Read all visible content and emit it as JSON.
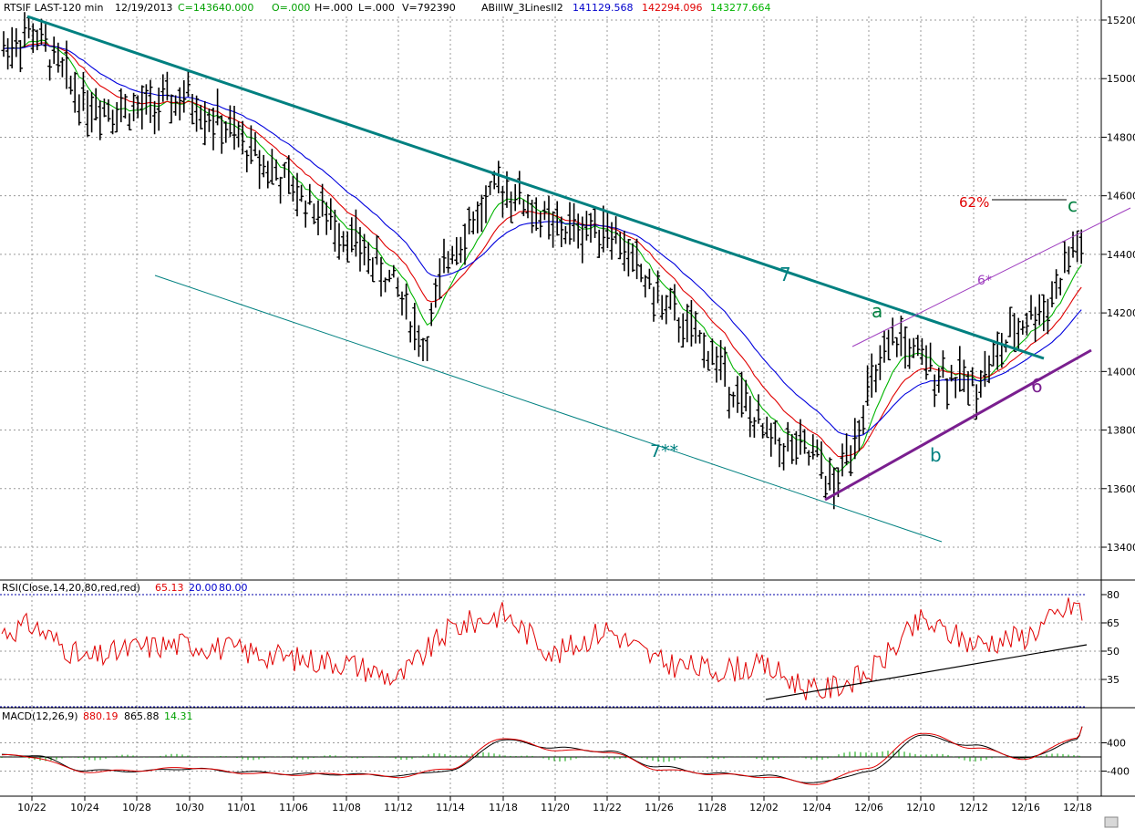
{
  "colors": {
    "bg": "#ffffff",
    "grid": "#9a9a9a",
    "price_bar": "#000000",
    "ma_fast": "#00b400",
    "ma_mid": "#e00000",
    "ma_slow": "#0000dd",
    "channel_teal": "#008080",
    "wave_purple": "#7a1f8f",
    "rsi_line": "#e00000",
    "rsi_band": "#0000aa",
    "macd_line": "#000000",
    "macd_signal": "#e00000",
    "macd_hist": "#00a000",
    "ann_green": "#008040",
    "ann_red": "#e00000"
  },
  "header": {
    "symbol": "RTSIF LAST-120 min",
    "date": "12/19/2013",
    "close": "C=143640.000",
    "open": "O=.000",
    "high": "H=.000",
    "low": "L=.000",
    "volume": "V=792390",
    "study": "ABillW_3LinesII2",
    "study_v1": "141129.568",
    "study_v2": "142294.096",
    "study_v3": "143277.664"
  },
  "rsi_header": {
    "label": "RSI(Close,14,20,80,red,red)",
    "value": "65.13",
    "low": "20.00",
    "high": "80.00"
  },
  "macd_header": {
    "label": "MACD(12,26,9)",
    "v1": "880.19",
    "v2": "865.88",
    "v3": "14.31"
  },
  "annotations": {
    "line7": "7",
    "line7b": "7**",
    "line6": "6",
    "line6b": "6*",
    "wave_a": "a",
    "wave_b": "b",
    "wave_c": "c",
    "fib": "62%"
  },
  "chart_data": [
    {
      "type": "line",
      "title": "",
      "x_ticks": [
        "10/22",
        "10/24",
        "10/28",
        "10/30",
        "11/01",
        "11/06",
        "11/08",
        "11/12",
        "11/14",
        "11/18",
        "11/20",
        "11/22",
        "11/26",
        "11/28",
        "12/02",
        "12/04",
        "12/06",
        "12/10",
        "12/12",
        "12/16",
        "12/18"
      ],
      "y_ticks": [
        13400,
        13600,
        13800,
        14000,
        14200,
        14400,
        14600,
        14800,
        15000,
        15200
      ],
      "ylim": [
        13300,
        15250
      ],
      "grid": true,
      "series": [
        {
          "x": [
            "10/22",
            "10/24",
            "10/28",
            "10/30",
            "11/01",
            "11/06",
            "11/08",
            "11/12",
            "11/13",
            "11/14",
            "11/18",
            "11/20",
            "11/22",
            "11/26",
            "11/28",
            "12/02",
            "12/04",
            "12/05",
            "12/06",
            "12/09",
            "12/10",
            "12/12",
            "12/16",
            "12/17",
            "12/18",
            "12/19"
          ],
          "y": [
            15160,
            14920,
            14890,
            14930,
            14780,
            14620,
            14470,
            14280,
            14080,
            14420,
            14640,
            14480,
            14500,
            14240,
            14060,
            13780,
            13700,
            13590,
            13930,
            14120,
            14030,
            13950,
            14180,
            14230,
            14450,
            14364
          ]
        }
      ]
    },
    {
      "type": "line",
      "title": "",
      "y_ticks": [
        35,
        50,
        65,
        80
      ],
      "ylim": [
        20,
        80
      ],
      "series": [
        {
          "x": [
            "10/22",
            "10/24",
            "10/28",
            "10/30",
            "11/01",
            "11/06",
            "11/08",
            "11/12",
            "11/14",
            "11/18",
            "11/20",
            "11/22",
            "11/26",
            "11/28",
            "12/02",
            "12/04",
            "12/06",
            "12/10",
            "12/12",
            "12/16",
            "12/18",
            "12/19"
          ],
          "y": [
            64,
            45,
            52,
            54,
            50,
            46,
            44,
            35,
            62,
            70,
            48,
            62,
            44,
            40,
            42,
            28,
            38,
            66,
            54,
            58,
            76,
            65.13
          ]
        }
      ]
    },
    {
      "type": "line",
      "title": "",
      "y_ticks": [
        -400,
        400
      ],
      "series": [
        {
          "x": [
            "10/22",
            "10/24",
            "10/28",
            "10/30",
            "11/01",
            "11/06",
            "11/08",
            "11/12",
            "11/14",
            "11/18",
            "11/20",
            "11/22",
            "11/26",
            "11/28",
            "12/02",
            "12/04",
            "12/06",
            "12/10",
            "12/12",
            "12/16",
            "12/18",
            "12/19"
          ],
          "y": [
            0,
            -420,
            -380,
            -300,
            -450,
            -500,
            -480,
            -560,
            -320,
            540,
            200,
            150,
            -350,
            -480,
            -560,
            -760,
            -300,
            680,
            260,
            -50,
            550,
            880.19
          ]
        },
        {
          "x": [
            "10/22",
            "10/24",
            "10/28",
            "10/30",
            "11/01",
            "11/06",
            "11/08",
            "11/12",
            "11/14",
            "11/18",
            "11/20",
            "11/22",
            "11/26",
            "11/28",
            "12/02",
            "12/04",
            "12/06",
            "12/10",
            "12/12",
            "12/16",
            "12/18",
            "12/19"
          ],
          "y": [
            50,
            -380,
            -400,
            -330,
            -420,
            -480,
            -490,
            -530,
            -380,
            480,
            260,
            160,
            -280,
            -470,
            -530,
            -730,
            -420,
            600,
            320,
            -40,
            480,
            865.88
          ]
        }
      ]
    }
  ]
}
